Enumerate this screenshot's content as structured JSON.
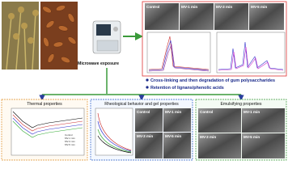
{
  "top": {
    "process": "Microwave exposure",
    "sem_labels": [
      "Control",
      "MV-1 min",
      "MV-3 min",
      "MV-5 min"
    ],
    "bullets": [
      "Cross-linking and then degradation of gum polysaccharides",
      "Retention of lignans/phenolic acids"
    ]
  },
  "panels": [
    {
      "title": "Thermal properties",
      "legend": [
        "Control",
        "MV-1 min",
        "MV-3 min",
        "MV-5 min"
      ]
    },
    {
      "title": "Rheological behavior and gel properties",
      "sem_labels": [
        "Control",
        "MV-1 min",
        "MV-3 min",
        "MV-5 min"
      ]
    },
    {
      "title": "Emulsifying properties",
      "sem_labels": [
        "Control",
        "MV-1 min",
        "MV-3 min",
        "MV-5 min"
      ]
    }
  ]
}
